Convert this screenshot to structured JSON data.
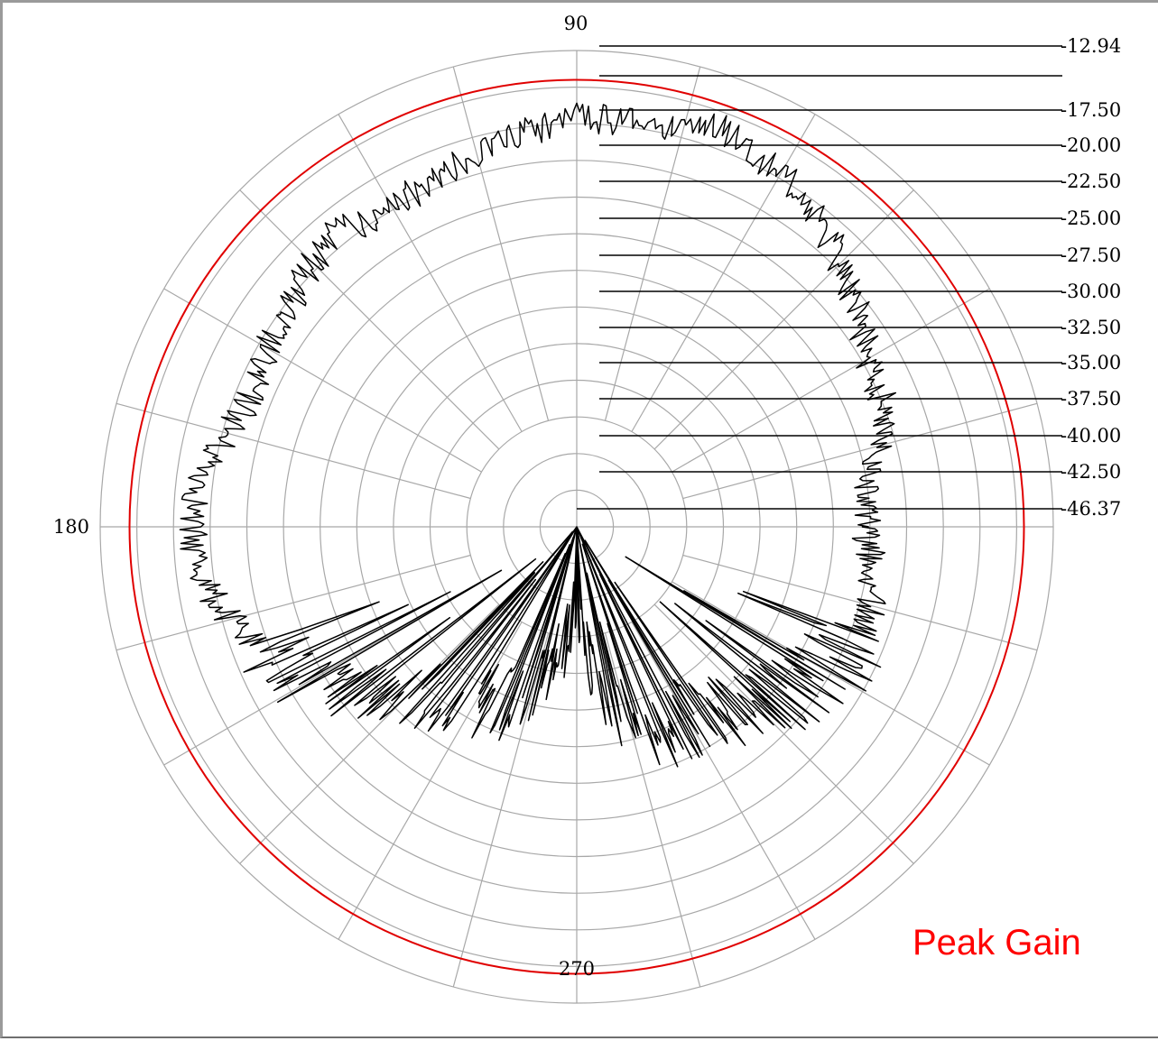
{
  "chart_data": {
    "type": "polar",
    "angle_labels": [
      {
        "deg": 90,
        "text": "90"
      },
      {
        "deg": 180,
        "text": "180"
      },
      {
        "deg": 270,
        "text": "270"
      }
    ],
    "radial_tick_labels": [
      "-12.94",
      "",
      "-17.50",
      "-20.00",
      "-22.50",
      "-25.00",
      "-27.50",
      "-30.00",
      "-32.50",
      "-35.00",
      "-37.50",
      "-40.00",
      "-42.50",
      "-46.37"
    ],
    "rlim": [
      -46.37,
      -12.94
    ],
    "grid": true,
    "angular_grid_step_deg": 15,
    "reference_circle_value": -15.0,
    "reference_circle_color": "#e00000",
    "trace_color": "#000000",
    "annotation": "Peak Gain",
    "series_anchor_points": [
      {
        "angle": 0,
        "value": -26.0
      },
      {
        "angle": 10,
        "value": -25.5
      },
      {
        "angle": 20,
        "value": -23.0
      },
      {
        "angle": 30,
        "value": -22.5
      },
      {
        "angle": 40,
        "value": -21.0
      },
      {
        "angle": 50,
        "value": -19.0
      },
      {
        "angle": 60,
        "value": -17.5
      },
      {
        "angle": 70,
        "value": -16.5
      },
      {
        "angle": 80,
        "value": -17.5
      },
      {
        "angle": 90,
        "value": -17.5
      },
      {
        "angle": 100,
        "value": -18.5
      },
      {
        "angle": 110,
        "value": -19.5
      },
      {
        "angle": 120,
        "value": -20.5
      },
      {
        "angle": 130,
        "value": -19.5
      },
      {
        "angle": 140,
        "value": -20.5
      },
      {
        "angle": 150,
        "value": -21.0
      },
      {
        "angle": 160,
        "value": -21.5
      },
      {
        "angle": 170,
        "value": -20.0
      },
      {
        "angle": 180,
        "value": -19.0
      },
      {
        "angle": 190,
        "value": -20.0
      },
      {
        "angle": 200,
        "value": -22.0
      },
      {
        "angle": 210,
        "value": -24.5
      },
      {
        "angle": 220,
        "value": -28.0
      },
      {
        "angle": 230,
        "value": -30.5
      },
      {
        "angle": 240,
        "value": -31.5
      },
      {
        "angle": 250,
        "value": -32.0
      },
      {
        "angle": 260,
        "value": -36.0
      },
      {
        "angle": 270,
        "value": -40.0
      },
      {
        "angle": 280,
        "value": -33.5
      },
      {
        "angle": 290,
        "value": -30.5
      },
      {
        "angle": 300,
        "value": -30.0
      },
      {
        "angle": 310,
        "value": -29.0
      },
      {
        "angle": 320,
        "value": -27.0
      },
      {
        "angle": 330,
        "value": -25.5
      },
      {
        "angle": 340,
        "value": -24.5
      },
      {
        "angle": 350,
        "value": -25.0
      },
      {
        "angle": 360,
        "value": -26.0
      }
    ]
  }
}
